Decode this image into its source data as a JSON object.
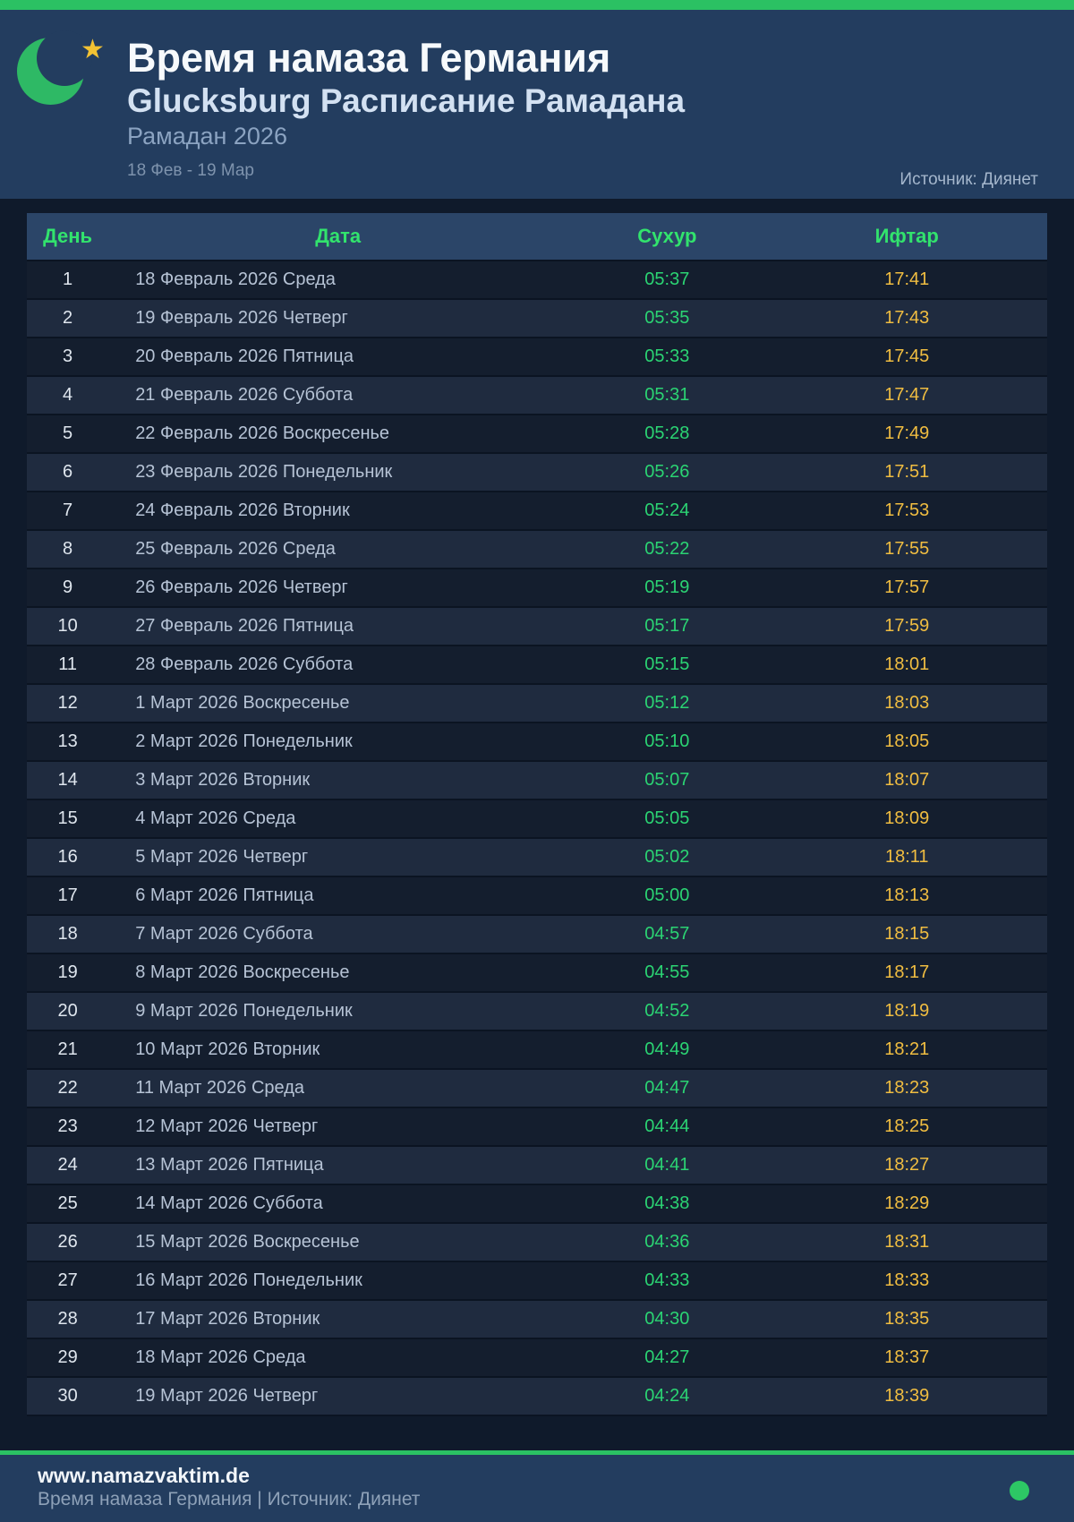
{
  "page": {
    "title": "Время намаза Германия",
    "subtitle": "Glucksburg Расписание Рамадана",
    "period_label": "Рамадан 2026",
    "date_range": "18 Фев - 19 Мар",
    "source": "Источник: Диянет"
  },
  "colors": {
    "accent_green": "#2bc163",
    "crescent_green": "#2eb965",
    "star_gold": "#f2c233",
    "header_green_text": "#32e36d",
    "suhoor_green": "#2bd473",
    "iftar_amber": "#f0bd41",
    "panel_navy": "#233d5f",
    "table_header_navy": "#2b4568",
    "row_dark": "#141e2e",
    "row_light": "#1f2b3f",
    "page_bg": "#0f1a2b"
  },
  "icons": {
    "crescent": "crescent-moon",
    "star": "★",
    "status_dot": "green-dot"
  },
  "table": {
    "headers": [
      "День",
      "Дата",
      "Сухур",
      "Ифтар"
    ],
    "rows": [
      [
        "1",
        "18 Февраль 2026 Среда",
        "05:37",
        "17:41"
      ],
      [
        "2",
        "19 Февраль 2026 Четверг",
        "05:35",
        "17:43"
      ],
      [
        "3",
        "20 Февраль 2026 Пятница",
        "05:33",
        "17:45"
      ],
      [
        "4",
        "21 Февраль 2026 Суббота",
        "05:31",
        "17:47"
      ],
      [
        "5",
        "22 Февраль 2026 Воскресенье",
        "05:28",
        "17:49"
      ],
      [
        "6",
        "23 Февраль 2026 Понедельник",
        "05:26",
        "17:51"
      ],
      [
        "7",
        "24 Февраль 2026 Вторник",
        "05:24",
        "17:53"
      ],
      [
        "8",
        "25 Февраль 2026 Среда",
        "05:22",
        "17:55"
      ],
      [
        "9",
        "26 Февраль 2026 Четверг",
        "05:19",
        "17:57"
      ],
      [
        "10",
        "27 Февраль 2026 Пятница",
        "05:17",
        "17:59"
      ],
      [
        "11",
        "28 Февраль 2026 Суббота",
        "05:15",
        "18:01"
      ],
      [
        "12",
        "1 Март 2026 Воскресенье",
        "05:12",
        "18:03"
      ],
      [
        "13",
        "2 Март 2026 Понедельник",
        "05:10",
        "18:05"
      ],
      [
        "14",
        "3 Март 2026 Вторник",
        "05:07",
        "18:07"
      ],
      [
        "15",
        "4 Март 2026 Среда",
        "05:05",
        "18:09"
      ],
      [
        "16",
        "5 Март 2026 Четверг",
        "05:02",
        "18:11"
      ],
      [
        "17",
        "6 Март 2026 Пятница",
        "05:00",
        "18:13"
      ],
      [
        "18",
        "7 Март 2026 Суббота",
        "04:57",
        "18:15"
      ],
      [
        "19",
        "8 Март 2026 Воскресенье",
        "04:55",
        "18:17"
      ],
      [
        "20",
        "9 Март 2026 Понедельник",
        "04:52",
        "18:19"
      ],
      [
        "21",
        "10 Март 2026 Вторник",
        "04:49",
        "18:21"
      ],
      [
        "22",
        "11 Март 2026 Среда",
        "04:47",
        "18:23"
      ],
      [
        "23",
        "12 Март 2026 Четверг",
        "04:44",
        "18:25"
      ],
      [
        "24",
        "13 Март 2026 Пятница",
        "04:41",
        "18:27"
      ],
      [
        "25",
        "14 Март 2026 Суббота",
        "04:38",
        "18:29"
      ],
      [
        "26",
        "15 Март 2026 Воскресенье",
        "04:36",
        "18:31"
      ],
      [
        "27",
        "16 Март 2026 Понедельник",
        "04:33",
        "18:33"
      ],
      [
        "28",
        "17 Март 2026 Вторник",
        "04:30",
        "18:35"
      ],
      [
        "29",
        "18 Март 2026 Среда",
        "04:27",
        "18:37"
      ],
      [
        "30",
        "19 Март 2026 Четверг",
        "04:24",
        "18:39"
      ]
    ]
  },
  "footer": {
    "website": "www.namazvaktim.de",
    "tagline": "Время намаза Германия | Источник: Диянет"
  }
}
